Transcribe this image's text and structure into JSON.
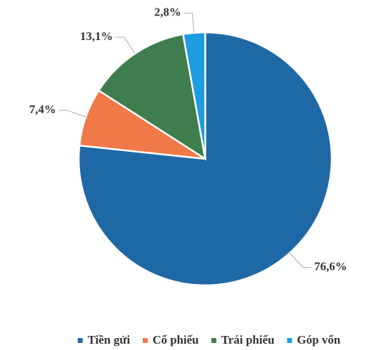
{
  "chart_data": {
    "type": "pie",
    "categories": [
      "Tiền gửi",
      "Cổ phiếu",
      "Trái phiếu",
      "Góp vốn"
    ],
    "values": [
      76.6,
      7.4,
      13.1,
      2.8
    ],
    "value_labels": [
      "76,6%",
      "7,4%",
      "13,1%",
      "2,8%"
    ],
    "colors": [
      "#1f68a6",
      "#f0794a",
      "#3f7d4e",
      "#1e9ce0"
    ],
    "legend": "bottom"
  }
}
